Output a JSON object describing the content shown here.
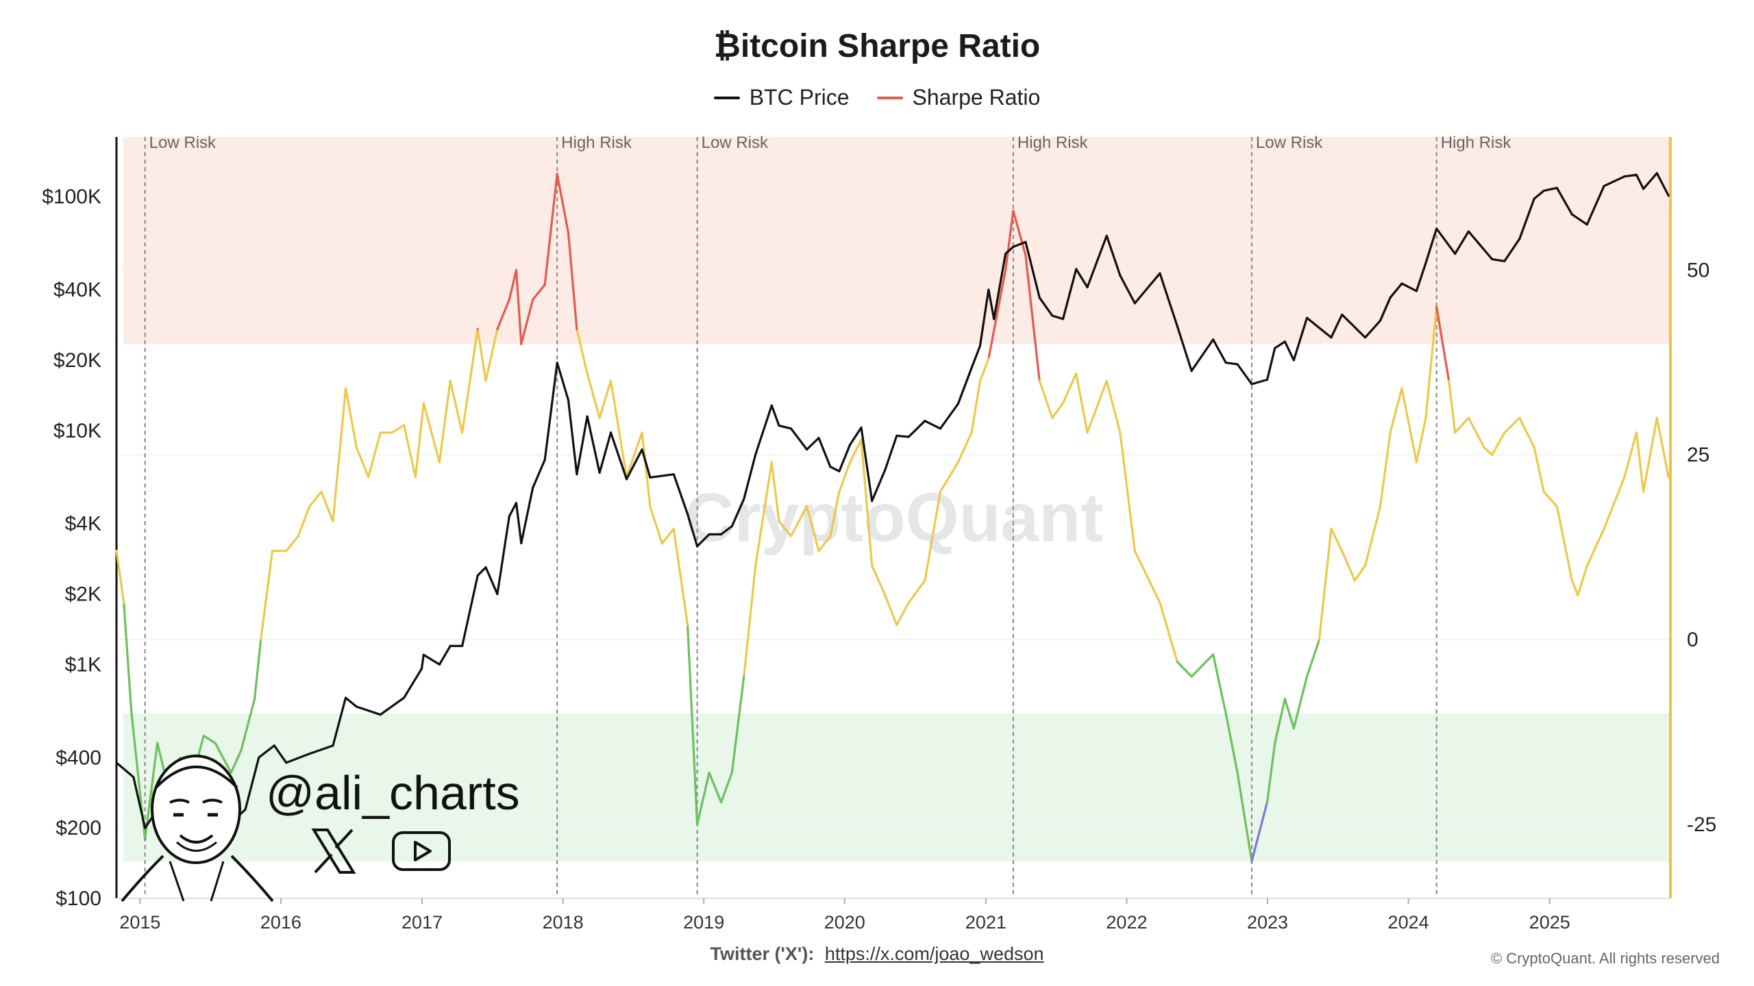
{
  "title": "₿itcoin Sharpe Ratio",
  "legend": [
    {
      "label": "BTC Price",
      "color": "#111111"
    },
    {
      "label": "Sharpe Ratio",
      "color": "#e25b4f"
    }
  ],
  "watermark": "CryptoQuant",
  "social": {
    "handle": "@ali_charts",
    "icons": [
      "x-logo-icon",
      "youtube-icon",
      "avatar-sketch-icon"
    ]
  },
  "footer": {
    "twitter_label": "Twitter ('X'):",
    "twitter_link": "https://x.com/joao_wedson",
    "copyright": "© CryptoQuant. All rights reserved"
  },
  "colors": {
    "price": "#111111",
    "sharpe_high": "#e25b4f",
    "sharpe_mid": "#ecc94b",
    "sharpe_low": "#6cc05c",
    "sharpe_extreme": "#7b78de",
    "high_zone": "#fdebe6",
    "low_zone": "#e9f6ea",
    "right_axis": "#f0c040"
  },
  "chart_data": {
    "type": "line",
    "title": "₿itcoin Sharpe Ratio",
    "x_axis": {
      "type": "date",
      "range": [
        "2014-11-01",
        "2025-11-10"
      ],
      "tick_labels": [
        "2015",
        "2016",
        "2017",
        "2018",
        "2019",
        "2020",
        "2021",
        "2022",
        "2023",
        "2024",
        "2025"
      ]
    },
    "y_left": {
      "scale": "log",
      "range": [
        100,
        180000
      ],
      "ticks": [
        {
          "value": 100,
          "label": "$100"
        },
        {
          "value": 200,
          "label": "$200"
        },
        {
          "value": 400,
          "label": "$400"
        },
        {
          "value": 1000,
          "label": "$1K"
        },
        {
          "value": 2000,
          "label": "$2K"
        },
        {
          "value": 4000,
          "label": "$4K"
        },
        {
          "value": 10000,
          "label": "$10K"
        },
        {
          "value": 20000,
          "label": "$20K"
        },
        {
          "value": 40000,
          "label": "$40K"
        },
        {
          "value": 100000,
          "label": "$100K"
        }
      ]
    },
    "y_right": {
      "scale": "linear",
      "range": [
        -35,
        68
      ],
      "ticks": [
        {
          "value": 50,
          "label": "50"
        },
        {
          "value": 25,
          "label": "25"
        },
        {
          "value": 0,
          "label": "0"
        },
        {
          "value": -25,
          "label": "-25"
        }
      ]
    },
    "zones": [
      {
        "name": "high",
        "from": 40,
        "to": 68
      },
      {
        "name": "low",
        "from": -30,
        "to": -10
      }
    ],
    "thresholds": {
      "high": 40,
      "low": 0,
      "extreme_low": -25
    },
    "annotations": [
      {
        "date": "2015-01-14",
        "label": "Low Risk"
      },
      {
        "date": "2017-12-17",
        "label": "High Risk"
      },
      {
        "date": "2018-12-15",
        "label": "Low Risk"
      },
      {
        "date": "2021-03-13",
        "label": "High Risk"
      },
      {
        "date": "2022-11-21",
        "label": "Low Risk"
      },
      {
        "date": "2024-03-14",
        "label": "High Risk"
      }
    ],
    "series": [
      {
        "name": "BTC Price",
        "axis": "left",
        "points": [
          [
            "2014-11-01",
            380
          ],
          [
            "2014-12-15",
            330
          ],
          [
            "2015-01-14",
            200
          ],
          [
            "2015-02-15",
            240
          ],
          [
            "2015-04-15",
            225
          ],
          [
            "2015-06-15",
            245
          ],
          [
            "2015-07-15",
            285
          ],
          [
            "2015-08-25",
            210
          ],
          [
            "2015-10-01",
            240
          ],
          [
            "2015-11-05",
            400
          ],
          [
            "2015-12-15",
            450
          ],
          [
            "2016-01-15",
            380
          ],
          [
            "2016-03-15",
            415
          ],
          [
            "2016-05-15",
            450
          ],
          [
            "2016-06-17",
            720
          ],
          [
            "2016-07-15",
            660
          ],
          [
            "2016-09-15",
            610
          ],
          [
            "2016-11-15",
            720
          ],
          [
            "2016-12-31",
            960
          ],
          [
            "2017-01-05",
            1100
          ],
          [
            "2017-02-15",
            1000
          ],
          [
            "2017-03-15",
            1200
          ],
          [
            "2017-04-15",
            1200
          ],
          [
            "2017-05-25",
            2400
          ],
          [
            "2017-06-15",
            2600
          ],
          [
            "2017-07-15",
            2000
          ],
          [
            "2017-08-15",
            4300
          ],
          [
            "2017-09-02",
            4900
          ],
          [
            "2017-09-15",
            3300
          ],
          [
            "2017-10-15",
            5700
          ],
          [
            "2017-11-15",
            7500
          ],
          [
            "2017-12-17",
            19500
          ],
          [
            "2018-01-15",
            13500
          ],
          [
            "2018-02-06",
            6500
          ],
          [
            "2018-03-05",
            11500
          ],
          [
            "2018-04-06",
            6600
          ],
          [
            "2018-05-05",
            9800
          ],
          [
            "2018-06-15",
            6200
          ],
          [
            "2018-07-25",
            8300
          ],
          [
            "2018-08-15",
            6300
          ],
          [
            "2018-10-15",
            6500
          ],
          [
            "2018-11-20",
            4400
          ],
          [
            "2018-12-15",
            3200
          ],
          [
            "2019-01-15",
            3600
          ],
          [
            "2019-02-15",
            3600
          ],
          [
            "2019-03-15",
            3900
          ],
          [
            "2019-04-15",
            5100
          ],
          [
            "2019-05-15",
            7900
          ],
          [
            "2019-06-26",
            12800
          ],
          [
            "2019-07-15",
            10500
          ],
          [
            "2019-08-15",
            10200
          ],
          [
            "2019-09-25",
            8300
          ],
          [
            "2019-10-26",
            9300
          ],
          [
            "2019-11-25",
            7000
          ],
          [
            "2019-12-18",
            6700
          ],
          [
            "2020-01-15",
            8700
          ],
          [
            "2020-02-13",
            10300
          ],
          [
            "2020-03-12",
            5000
          ],
          [
            "2020-04-15",
            6800
          ],
          [
            "2020-05-15",
            9500
          ],
          [
            "2020-06-15",
            9400
          ],
          [
            "2020-07-27",
            11000
          ],
          [
            "2020-09-05",
            10200
          ],
          [
            "2020-10-21",
            13000
          ],
          [
            "2020-11-25",
            18500
          ],
          [
            "2020-12-17",
            23000
          ],
          [
            "2021-01-08",
            40000
          ],
          [
            "2021-01-22",
            30000
          ],
          [
            "2021-02-21",
            57000
          ],
          [
            "2021-03-13",
            61000
          ],
          [
            "2021-04-14",
            64000
          ],
          [
            "2021-05-20",
            37000
          ],
          [
            "2021-06-22",
            31000
          ],
          [
            "2021-07-20",
            30000
          ],
          [
            "2021-08-23",
            49000
          ],
          [
            "2021-09-21",
            41000
          ],
          [
            "2021-11-10",
            68000
          ],
          [
            "2021-12-15",
            46000
          ],
          [
            "2022-01-22",
            35000
          ],
          [
            "2022-03-28",
            47000
          ],
          [
            "2022-05-12",
            28000
          ],
          [
            "2022-06-18",
            18000
          ],
          [
            "2022-08-13",
            24500
          ],
          [
            "2022-09-15",
            19500
          ],
          [
            "2022-10-15",
            19200
          ],
          [
            "2022-11-21",
            15800
          ],
          [
            "2022-12-31",
            16500
          ],
          [
            "2023-01-20",
            22500
          ],
          [
            "2023-02-15",
            24000
          ],
          [
            "2023-03-10",
            20000
          ],
          [
            "2023-04-13",
            30300
          ],
          [
            "2023-06-15",
            25000
          ],
          [
            "2023-07-13",
            31300
          ],
          [
            "2023-09-11",
            25000
          ],
          [
            "2023-10-20",
            29500
          ],
          [
            "2023-11-15",
            37000
          ],
          [
            "2023-12-15",
            42500
          ],
          [
            "2024-01-22",
            39500
          ],
          [
            "2024-02-15",
            52000
          ],
          [
            "2024-03-14",
            73000
          ],
          [
            "2024-05-01",
            57000
          ],
          [
            "2024-06-05",
            71000
          ],
          [
            "2024-08-05",
            54000
          ],
          [
            "2024-09-06",
            53000
          ],
          [
            "2024-10-15",
            66000
          ],
          [
            "2024-11-22",
            98000
          ],
          [
            "2024-12-17",
            106000
          ],
          [
            "2025-01-20",
            109000
          ],
          [
            "2025-02-28",
            84000
          ],
          [
            "2025-04-08",
            76000
          ],
          [
            "2025-05-22",
            111000
          ],
          [
            "2025-07-14",
            122000
          ],
          [
            "2025-08-14",
            124000
          ],
          [
            "2025-09-01",
            108000
          ],
          [
            "2025-10-06",
            126000
          ],
          [
            "2025-11-05",
            101000
          ]
        ]
      },
      {
        "name": "Sharpe Ratio",
        "axis": "right",
        "points": [
          [
            "2014-11-01",
            12
          ],
          [
            "2014-11-20",
            5
          ],
          [
            "2014-12-10",
            -10
          ],
          [
            "2015-01-14",
            -27
          ],
          [
            "2015-02-15",
            -14
          ],
          [
            "2015-03-15",
            -20
          ],
          [
            "2015-04-15",
            -16
          ],
          [
            "2015-05-15",
            -19
          ],
          [
            "2015-06-15",
            -13
          ],
          [
            "2015-07-15",
            -14
          ],
          [
            "2015-08-25",
            -18
          ],
          [
            "2015-09-20",
            -15
          ],
          [
            "2015-10-25",
            -8
          ],
          [
            "2015-11-10",
            0
          ],
          [
            "2015-12-10",
            12
          ],
          [
            "2016-01-15",
            12
          ],
          [
            "2016-02-15",
            14
          ],
          [
            "2016-03-15",
            18
          ],
          [
            "2016-04-15",
            20
          ],
          [
            "2016-05-15",
            16
          ],
          [
            "2016-06-17",
            34
          ],
          [
            "2016-07-15",
            26
          ],
          [
            "2016-08-15",
            22
          ],
          [
            "2016-09-15",
            28
          ],
          [
            "2016-10-15",
            28
          ],
          [
            "2016-11-15",
            29
          ],
          [
            "2016-12-15",
            22
          ],
          [
            "2017-01-05",
            32
          ],
          [
            "2017-02-15",
            24
          ],
          [
            "2017-03-15",
            35
          ],
          [
            "2017-04-15",
            28
          ],
          [
            "2017-05-25",
            42
          ],
          [
            "2017-06-15",
            35
          ],
          [
            "2017-07-15",
            42
          ],
          [
            "2017-08-15",
            46
          ],
          [
            "2017-09-02",
            50
          ],
          [
            "2017-09-15",
            40
          ],
          [
            "2017-10-15",
            46
          ],
          [
            "2017-11-15",
            48
          ],
          [
            "2017-12-17",
            63
          ],
          [
            "2018-01-15",
            55
          ],
          [
            "2018-02-06",
            42
          ],
          [
            "2018-03-05",
            36
          ],
          [
            "2018-04-06",
            30
          ],
          [
            "2018-05-05",
            35
          ],
          [
            "2018-06-15",
            22
          ],
          [
            "2018-07-25",
            28
          ],
          [
            "2018-08-15",
            18
          ],
          [
            "2018-09-15",
            13
          ],
          [
            "2018-10-15",
            15
          ],
          [
            "2018-11-20",
            2
          ],
          [
            "2018-12-15",
            -25
          ],
          [
            "2019-01-15",
            -18
          ],
          [
            "2019-02-15",
            -22
          ],
          [
            "2019-03-15",
            -18
          ],
          [
            "2019-04-15",
            -5
          ],
          [
            "2019-05-15",
            10
          ],
          [
            "2019-06-26",
            24
          ],
          [
            "2019-07-15",
            16
          ],
          [
            "2019-08-15",
            14
          ],
          [
            "2019-09-25",
            18
          ],
          [
            "2019-10-26",
            12
          ],
          [
            "2019-11-25",
            14
          ],
          [
            "2019-12-18",
            20
          ],
          [
            "2020-01-15",
            24
          ],
          [
            "2020-02-13",
            27
          ],
          [
            "2020-03-12",
            10
          ],
          [
            "2020-04-15",
            6
          ],
          [
            "2020-05-15",
            2
          ],
          [
            "2020-06-15",
            5
          ],
          [
            "2020-07-27",
            8
          ],
          [
            "2020-09-05",
            20
          ],
          [
            "2020-10-21",
            24
          ],
          [
            "2020-11-25",
            28
          ],
          [
            "2020-12-17",
            35
          ],
          [
            "2021-01-08",
            38
          ],
          [
            "2021-02-21",
            50
          ],
          [
            "2021-03-13",
            58
          ],
          [
            "2021-04-14",
            52
          ],
          [
            "2021-05-20",
            35
          ],
          [
            "2021-06-22",
            30
          ],
          [
            "2021-07-20",
            32
          ],
          [
            "2021-08-23",
            36
          ],
          [
            "2021-09-21",
            28
          ],
          [
            "2021-11-10",
            35
          ],
          [
            "2021-12-15",
            28
          ],
          [
            "2022-01-22",
            12
          ],
          [
            "2022-03-28",
            5
          ],
          [
            "2022-05-12",
            -3
          ],
          [
            "2022-06-18",
            -5
          ],
          [
            "2022-08-13",
            -2
          ],
          [
            "2022-09-15",
            -10
          ],
          [
            "2022-10-15",
            -18
          ],
          [
            "2022-11-21",
            -30
          ],
          [
            "2022-12-31",
            -22
          ],
          [
            "2023-01-20",
            -14
          ],
          [
            "2023-02-15",
            -8
          ],
          [
            "2023-03-10",
            -12
          ],
          [
            "2023-04-13",
            -5
          ],
          [
            "2023-05-15",
            0
          ],
          [
            "2023-06-15",
            15
          ],
          [
            "2023-07-13",
            12
          ],
          [
            "2023-08-15",
            8
          ],
          [
            "2023-09-11",
            10
          ],
          [
            "2023-10-20",
            18
          ],
          [
            "2023-11-15",
            28
          ],
          [
            "2023-12-15",
            34
          ],
          [
            "2024-01-22",
            24
          ],
          [
            "2024-02-15",
            30
          ],
          [
            "2024-03-14",
            45
          ],
          [
            "2024-04-15",
            35
          ],
          [
            "2024-05-01",
            28
          ],
          [
            "2024-06-05",
            30
          ],
          [
            "2024-07-15",
            26
          ],
          [
            "2024-08-05",
            25
          ],
          [
            "2024-09-06",
            28
          ],
          [
            "2024-10-15",
            30
          ],
          [
            "2024-11-22",
            26
          ],
          [
            "2024-12-17",
            20
          ],
          [
            "2025-01-20",
            18
          ],
          [
            "2025-02-28",
            8
          ],
          [
            "2025-03-15",
            6
          ],
          [
            "2025-04-08",
            10
          ],
          [
            "2025-05-22",
            15
          ],
          [
            "2025-07-14",
            22
          ],
          [
            "2025-08-14",
            28
          ],
          [
            "2025-09-01",
            20
          ],
          [
            "2025-10-06",
            30
          ],
          [
            "2025-11-05",
            22
          ]
        ]
      }
    ]
  }
}
